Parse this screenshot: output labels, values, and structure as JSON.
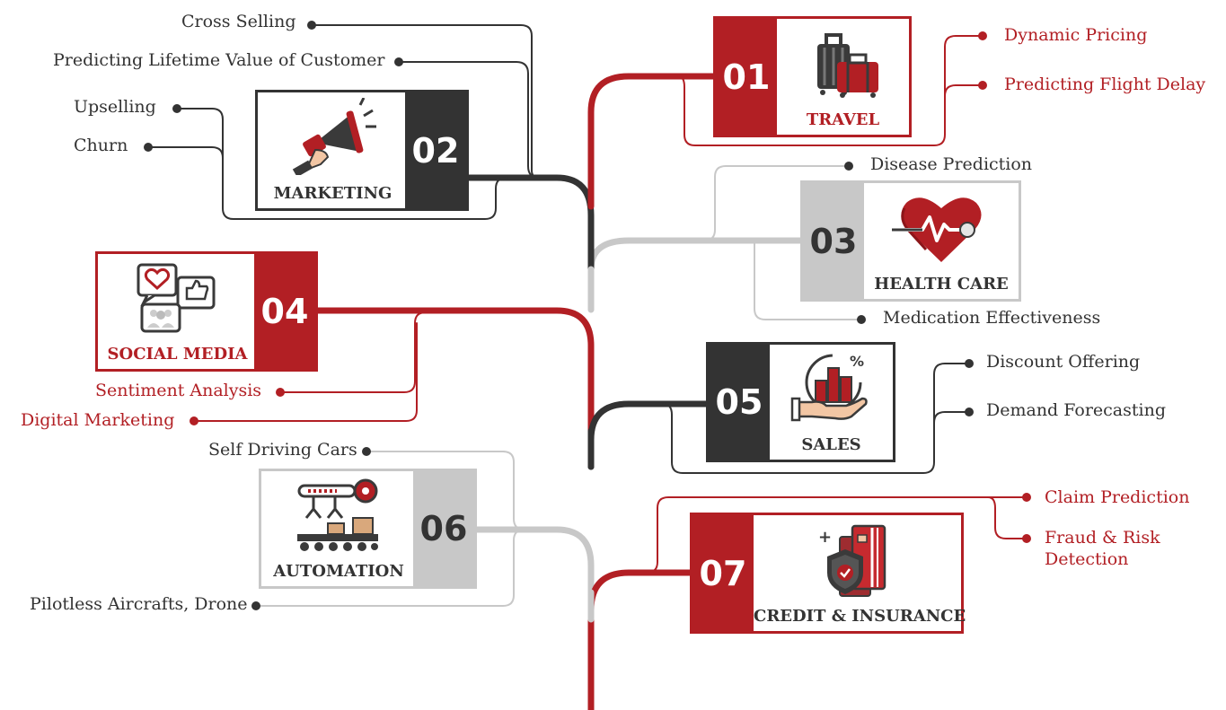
{
  "colors": {
    "red": "#b21f24",
    "dark": "#333333",
    "gray": "#c8c8c8",
    "text_dark": "#333333"
  },
  "sections": [
    {
      "number": "01",
      "title": "TRAVEL",
      "icon": "luggage-icon",
      "branches": [
        "Dynamic Pricing",
        "Predicting Flight Delay"
      ]
    },
    {
      "number": "02",
      "title": "MARKETING",
      "icon": "megaphone-icon",
      "branches": [
        "Cross Selling",
        "Predicting Lifetime Value of Customer",
        "Upselling",
        "Churn"
      ]
    },
    {
      "number": "03",
      "title": "HEALTH CARE",
      "icon": "heart-pulse-icon",
      "branches": [
        "Disease Prediction",
        "Medication Effectiveness"
      ]
    },
    {
      "number": "04",
      "title": "SOCIAL MEDIA",
      "icon": "social-chat-icon",
      "branches": [
        "Sentiment Analysis",
        "Digital Marketing"
      ]
    },
    {
      "number": "05",
      "title": "SALES",
      "icon": "sales-hand-chart-icon",
      "branches": [
        "Discount Offering",
        "Demand Forecasting"
      ]
    },
    {
      "number": "06",
      "title": "AUTOMATION",
      "icon": "robot-arm-conveyor-icon",
      "branches": [
        "Self Driving Cars",
        "Pilotless Aircrafts, Drone"
      ]
    },
    {
      "number": "07",
      "title": "CREDIT & INSURANCE",
      "icon": "shield-card-icon",
      "branches": [
        "Claim Prediction",
        "Fraud & Risk\nDetection"
      ]
    }
  ]
}
